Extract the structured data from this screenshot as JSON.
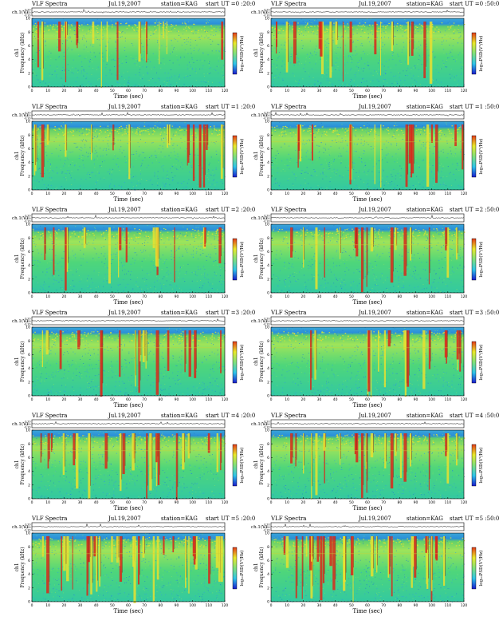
{
  "page": {
    "background": "#ffffff"
  },
  "colors": {
    "colorbar": [
      "#1a1acc",
      "#2ec4e8",
      "#7fe07a",
      "#e8e82a",
      "#e23a1a"
    ],
    "spectrogram_base": "#3fd39a",
    "spectrogram_noise": "#3aa6d8",
    "spectrogram_mid": "#8fe36a",
    "spectrogram_hot": "#e8e030",
    "spectrogram_max": "#d8281a",
    "top_band": "#2299dd"
  },
  "panels": [
    {
      "title": "VLF Spectra",
      "date": "Jul.19,2007",
      "station": "station=KAG",
      "start": "start  UT  =0 :20:0",
      "title_style": "left"
    },
    {
      "title": "VLF Spectra",
      "date": "Jul.19,2007",
      "station": "station=KAG",
      "start": "start  UT  =0 :50:0",
      "title_style": "right"
    },
    {
      "title": "VLF Spectra",
      "date": "Jul.19,2007",
      "station": "station=KAG",
      "start": "start  UT  =1 :20:0",
      "title_style": "left"
    },
    {
      "title": "VLF Spectra",
      "date": "Jul.19,2007",
      "station": "station=KAG",
      "start": "start  UT  =1 :50:0",
      "title_style": "right"
    },
    {
      "title": "VLF Spectra",
      "date": "Jul.19,2007",
      "station": "station=KAG",
      "start": "start  UT  =2 :20:0",
      "title_style": "left"
    },
    {
      "title": "VLF Spectra",
      "date": "Jul.19,2007",
      "station": "station=KAG",
      "start": "start  UT  =2 :50:0",
      "title_style": "right"
    },
    {
      "title": "VLF Spectra",
      "date": "Jul.19,2007",
      "station": "station=KAG",
      "start": "start  UT  =3 :20:0",
      "title_style": "left"
    },
    {
      "title": "VLF Spectra",
      "date": "Jul.19,2007",
      "station": "station=KAG",
      "start": "start  UT  =3 :50:0",
      "title_style": "right"
    },
    {
      "title": "VLF Spectra",
      "date": "Jul.19,2007",
      "station": "station=KAG",
      "start": "start  UT  =4 :20:0",
      "title_style": "left"
    },
    {
      "title": "VLF Spectra",
      "date": "Jul.19,2007",
      "station": "station=KAG",
      "start": "start  UT  =4 :50:0",
      "title_style": "right"
    },
    {
      "title": "VLF Spectra",
      "date": "Jul.19,2007",
      "station": "station=KAG",
      "start": "start  UT  =5 :20:0",
      "title_style": "left"
    },
    {
      "title": "VLF Spectra",
      "date": "Jul.19,2007",
      "station": "station=KAG",
      "start": "start  UT  =5 :50:0",
      "title_style": "right"
    }
  ],
  "chart_data": {
    "type": "heatmap",
    "count": 12,
    "xlabel": "Time  (sec)",
    "ylabel": "Frequency  (kHz)",
    "ylabel_left_extra": "ch1",
    "timeseries_label": "ch.1(V)",
    "timeseries_ticks": [
      "0.20",
      "0.00",
      "-0.20"
    ],
    "xlim": [
      0,
      120
    ],
    "ylim": [
      0,
      10
    ],
    "x_ticks": [
      "0",
      "10",
      "20",
      "30",
      "40",
      "50",
      "60",
      "70",
      "80",
      "90",
      "100",
      "110",
      "120"
    ],
    "y_ticks": [
      "0",
      "2",
      "4",
      "6",
      "8",
      "10"
    ],
    "colorbar_label": "log₁₀PSD(V²/Hz)",
    "grid": false,
    "colorbar_position": "right"
  }
}
